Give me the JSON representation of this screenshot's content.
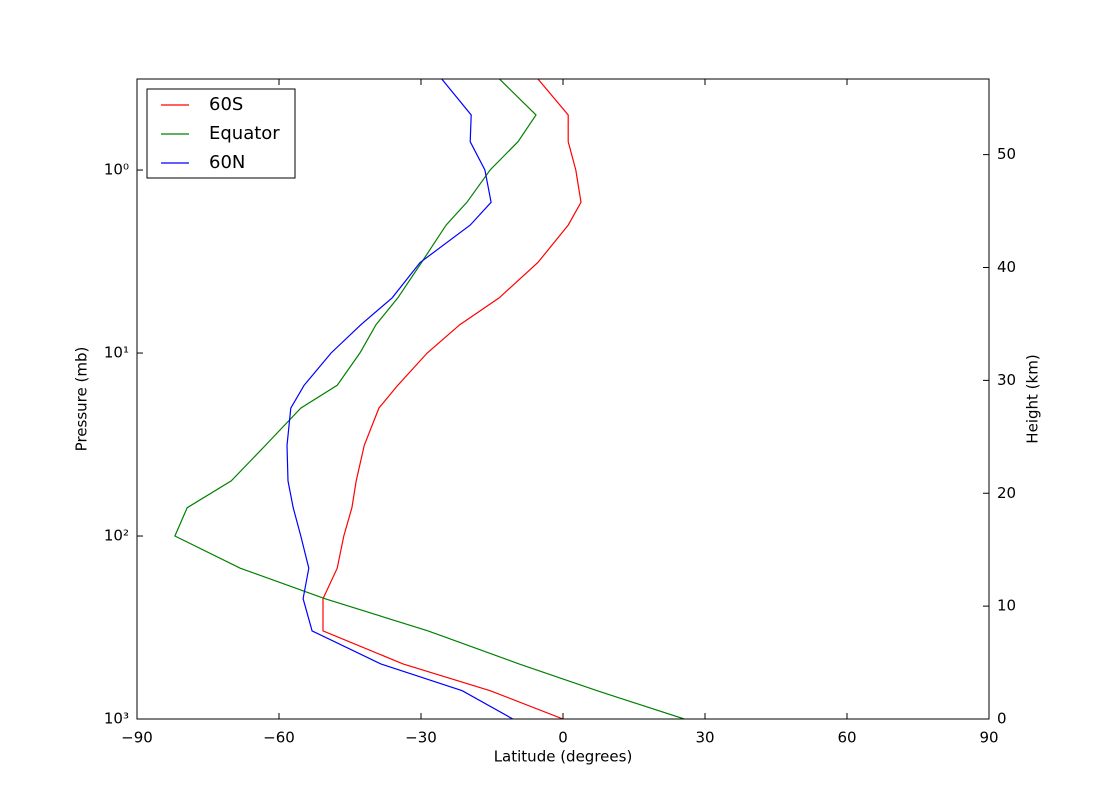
{
  "chart_data": {
    "type": "line",
    "orientation": "profile",
    "xlabel": "Latitude (degrees)",
    "ylabel": "Pressure (mb)",
    "y2label": "Height (km)",
    "y": [
      1000,
      700,
      500,
      330,
      220,
      150,
      100,
      70,
      50,
      32,
      20,
      15,
      10,
      7,
      5,
      3.2,
      2,
      1.5,
      1,
      0.7,
      0.5,
      0.3
    ],
    "series": [
      {
        "name": "60S",
        "color": "#ff0000",
        "values": [
          0,
          -15.4,
          -33.8,
          -50.7,
          -50.7,
          -47.7,
          -46.3,
          -44.6,
          -43.7,
          -42.0,
          -38.9,
          -34.9,
          -28.7,
          -21.8,
          -13.5,
          -5.3,
          1.1,
          3.8,
          2.7,
          1.1,
          1.1,
          -6.1
        ]
      },
      {
        "name": "Equator",
        "color": "#008000",
        "values": [
          25.6,
          7.2,
          -9.3,
          -28.5,
          -50.3,
          -68.2,
          -82.0,
          -79.4,
          -70.1,
          -62.9,
          -55.4,
          -47.7,
          -42.9,
          -39.5,
          -34.9,
          -29.9,
          -24.7,
          -20.3,
          -15.4,
          -9.5,
          -5.7,
          -14.4
        ]
      },
      {
        "name": "60N",
        "color": "#0000ff",
        "values": [
          -10.6,
          -21.3,
          -38.5,
          -53.0,
          -54.9,
          -53.7,
          -55.4,
          -57.0,
          -58.1,
          -58.3,
          -57.5,
          -54.7,
          -49.0,
          -42.7,
          -36.1,
          -30.2,
          -19.6,
          -15.2,
          -16.5,
          -19.6,
          -19.4,
          -26.4
        ]
      }
    ],
    "xlim": [
      -90,
      90
    ],
    "xticks": [
      {
        "value": -90,
        "label": "−90"
      },
      {
        "value": -60,
        "label": "−60"
      },
      {
        "value": -30,
        "label": "−30"
      },
      0,
      30,
      60,
      90
    ],
    "ylim": [
      1000,
      0.318
    ],
    "yscale": "log",
    "yticks": [
      {
        "value": 1,
        "label": "10⁰"
      },
      {
        "value": 10,
        "label": "10¹"
      },
      {
        "value": 100,
        "label": "10²"
      },
      {
        "value": 1000,
        "label": "10³"
      }
    ],
    "y2lim": [
      0,
      56.7
    ],
    "y2ticks": [
      0,
      10,
      20,
      30,
      40,
      50
    ],
    "legend": "upper left",
    "grid": false
  }
}
